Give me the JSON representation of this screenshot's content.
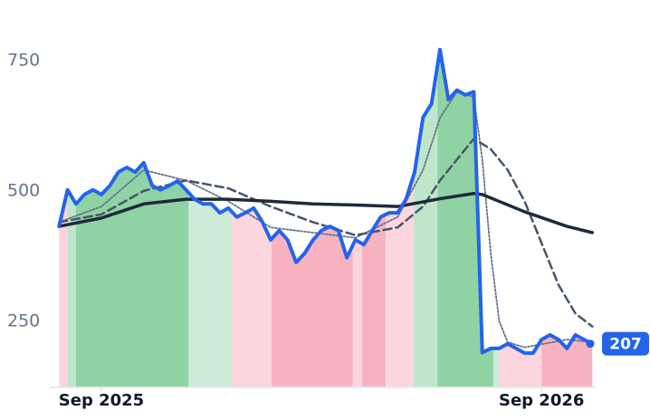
{
  "chart_data": {
    "type": "line",
    "xlim": [
      -6,
      60
    ],
    "xticks": [
      {
        "value": 0,
        "label": "Sep 2025"
      },
      {
        "value": 52,
        "label": "Sep 2026"
      }
    ],
    "ylim": [
      125,
      800
    ],
    "yticks": [
      250,
      500,
      750
    ],
    "grid": false,
    "series": [
      {
        "color": "#2563eb",
        "style": "bold",
        "x": [
          -5,
          -4,
          -3,
          -2,
          -1,
          0,
          1,
          2,
          3,
          4,
          5,
          6,
          7,
          8,
          9,
          10,
          11,
          12,
          13,
          14,
          15,
          16,
          17,
          18,
          19,
          20,
          21,
          22,
          23,
          24,
          25,
          26,
          27,
          28,
          29,
          30,
          31,
          32,
          33,
          34,
          35,
          36,
          37,
          38,
          39,
          40,
          41,
          42,
          43,
          44,
          45,
          46,
          47,
          48,
          49,
          50,
          51,
          52,
          53,
          54,
          55,
          56,
          57,
          58
        ],
        "values": [
          432,
          502,
          475,
          493,
          502,
          493,
          510,
          536,
          545,
          536,
          554,
          510,
          502,
          510,
          519,
          502,
          484,
          475,
          475,
          458,
          467,
          450,
          458,
          467,
          441,
          406,
          424,
          406,
          363,
          380,
          406,
          424,
          432,
          424,
          372,
          406,
          397,
          424,
          450,
          458,
          458,
          484,
          536,
          641,
          667,
          771,
          675,
          693,
          684,
          690,
          190,
          198,
          198,
          207,
          198,
          189,
          189,
          215,
          224,
          215,
          198,
          224,
          215,
          207
        ]
      },
      {
        "color": "#1e293b",
        "style": "solid",
        "x": [
          -5,
          0,
          5,
          10,
          15,
          20,
          25,
          30,
          35,
          40,
          44,
          45,
          50,
          55,
          58
        ],
        "values": [
          432,
          448,
          475,
          484,
          484,
          480,
          475,
          473,
          470,
          485,
          495,
          493,
          460,
          432,
          420
        ]
      },
      {
        "color": "#475569",
        "style": "dashed",
        "x": [
          -5,
          0,
          5,
          10,
          15,
          20,
          25,
          30,
          35,
          38,
          40,
          42,
          44,
          46,
          48,
          50,
          52,
          54,
          56,
          58
        ],
        "values": [
          440,
          455,
          500,
          520,
          505,
          470,
          440,
          415,
          430,
          470,
          520,
          560,
          600,
          580,
          540,
          480,
          400,
          320,
          265,
          240
        ]
      },
      {
        "color": "#64748b",
        "style": "dotted",
        "x": [
          -5,
          0,
          5,
          10,
          15,
          20,
          25,
          30,
          35,
          38,
          40,
          42,
          44,
          45,
          46,
          47,
          48,
          50,
          55,
          58
        ],
        "values": [
          440,
          470,
          540,
          520,
          480,
          430,
          420,
          410,
          450,
          540,
          640,
          690,
          680,
          560,
          380,
          250,
          210,
          200,
          215,
          210
        ]
      }
    ],
    "regions": [
      {
        "x0": -5.5,
        "x1": -4,
        "color": "#fbd3db"
      },
      {
        "x0": -4,
        "x1": -3,
        "color": "#bfe6cb"
      },
      {
        "x0": -3,
        "x1": 10.3,
        "color": "#8fd2a4"
      },
      {
        "x0": 10.3,
        "x1": 15.4,
        "color": "#cdebd7"
      },
      {
        "x0": 15.4,
        "x1": 20.1,
        "color": "#fcd6de"
      },
      {
        "x0": 20.1,
        "x1": 29.7,
        "color": "#f7b3c0"
      },
      {
        "x0": 29.7,
        "x1": 30.8,
        "color": "#fcd6de"
      },
      {
        "x0": 30.8,
        "x1": 33.6,
        "color": "#f7b3c0"
      },
      {
        "x0": 33.6,
        "x1": 36.9,
        "color": "#fcd6de"
      },
      {
        "x0": 36.9,
        "x1": 39.7,
        "color": "#bfe6cb"
      },
      {
        "x0": 39.7,
        "x1": 46.3,
        "color": "#8fd2a4"
      },
      {
        "x0": 46.3,
        "x1": 47,
        "color": "#cdebd7"
      },
      {
        "x0": 47,
        "x1": 52,
        "color": "#fcd6de"
      },
      {
        "x0": 52,
        "x1": 58.2,
        "color": "#f7b3c0"
      }
    ]
  }
}
